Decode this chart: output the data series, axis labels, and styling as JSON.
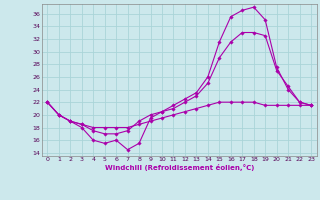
{
  "xlabel": "Windchill (Refroidissement éolien,°C)",
  "background_color": "#cce8ec",
  "line_color": "#aa00aa",
  "grid_color": "#aad4d8",
  "xlim": [
    -0.5,
    23.5
  ],
  "ylim": [
    13.5,
    37.5
  ],
  "yticks": [
    14,
    16,
    18,
    20,
    22,
    24,
    26,
    28,
    30,
    32,
    34,
    36
  ],
  "xticks": [
    0,
    1,
    2,
    3,
    4,
    5,
    6,
    7,
    8,
    9,
    10,
    11,
    12,
    13,
    14,
    15,
    16,
    17,
    18,
    19,
    20,
    21,
    22,
    23
  ],
  "line1_x": [
    0,
    1,
    2,
    3,
    4,
    5,
    6,
    7,
    8,
    9,
    10,
    11,
    12,
    13,
    14,
    15,
    16,
    17,
    18,
    19,
    20,
    21,
    22,
    23
  ],
  "line1_y": [
    22,
    20,
    19.0,
    18.0,
    16.0,
    15.5,
    16.0,
    14.5,
    15.5,
    19.5,
    20.5,
    21.5,
    22.5,
    23.5,
    26.0,
    31.5,
    35.5,
    36.5,
    37.0,
    35.0,
    27.5,
    24.0,
    22.0,
    21.5
  ],
  "line2_x": [
    0,
    1,
    2,
    3,
    4,
    5,
    6,
    7,
    8,
    9,
    10,
    11,
    12,
    13,
    14,
    15,
    16,
    17,
    18,
    19,
    20,
    21,
    22,
    23
  ],
  "line2_y": [
    22,
    20,
    19,
    18.5,
    17.5,
    17,
    17,
    17.5,
    19,
    20,
    20.5,
    21,
    22,
    23,
    25,
    29,
    31.5,
    33,
    33,
    32.5,
    27,
    24.5,
    22,
    21.5
  ],
  "line3_x": [
    0,
    1,
    2,
    3,
    4,
    5,
    6,
    7,
    8,
    9,
    10,
    11,
    12,
    13,
    14,
    15,
    16,
    17,
    18,
    19,
    20,
    21,
    22,
    23
  ],
  "line3_y": [
    22,
    20,
    19,
    18.5,
    18,
    18,
    18,
    18,
    18.5,
    19,
    19.5,
    20,
    20.5,
    21,
    21.5,
    22,
    22,
    22,
    22,
    21.5,
    21.5,
    21.5,
    21.5,
    21.5
  ]
}
